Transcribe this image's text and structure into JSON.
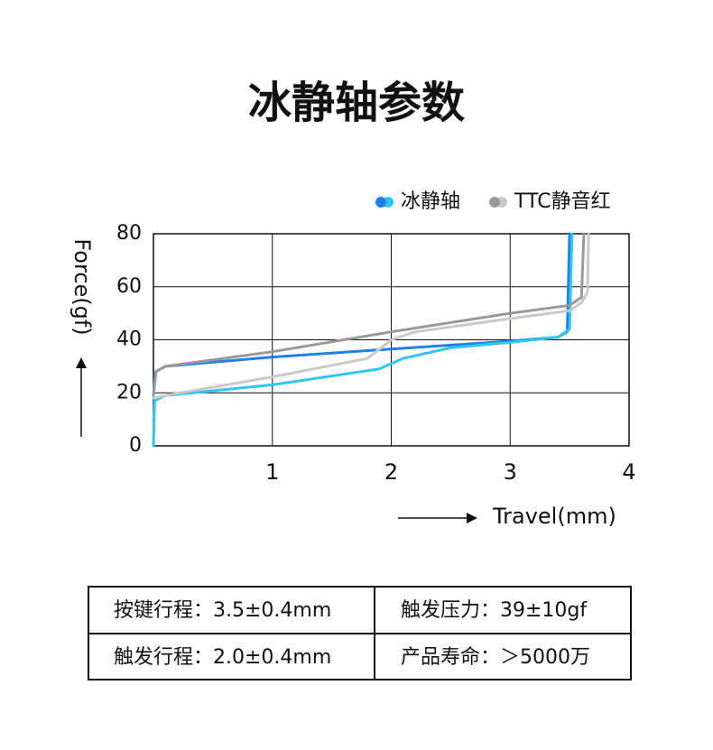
{
  "chart_data": {
    "type": "line",
    "title": "冰静轴参数",
    "y_label": "Force(gf)",
    "x_label": "Travel(mm)",
    "xlim": [
      0,
      4
    ],
    "xticks": [
      1,
      2,
      3,
      4
    ],
    "ylim": [
      0,
      80
    ],
    "yticks": [
      0,
      20,
      40,
      60,
      80
    ],
    "grid": true,
    "legend": "top-right",
    "series": [
      {
        "name": "冰静轴",
        "lines": [
          {
            "color": "#1f80e6",
            "x": [
              0,
              0.02,
              0.1,
              1,
              2,
              3,
              3.4,
              3.48,
              3.5
            ],
            "values": [
              19,
              28,
              30,
              33.5,
              36.5,
              39.5,
              41,
              43,
              80
            ]
          },
          {
            "color": "#30c6ef",
            "x": [
              0,
              0.01,
              0.1,
              1,
              1.9,
              2.1,
              2.5,
              3,
              3.4,
              3.5,
              3.52
            ],
            "values": [
              0,
              17,
              19,
              23,
              29,
              33,
              37,
              39,
              41,
              44,
              80
            ]
          }
        ]
      },
      {
        "name": "TTC静音红",
        "lines": [
          {
            "color": "#999999",
            "x": [
              0,
              0.02,
              0.1,
              1,
              2,
              3,
              3.5,
              3.6,
              3.62
            ],
            "values": [
              19,
              28,
              30,
              35.5,
              43,
              50,
              53,
              56,
              80
            ]
          },
          {
            "color": "#c9c9c9",
            "x": [
              0,
              0.1,
              1,
              1.8,
              2,
              2.2,
              3,
              3.5,
              3.6,
              3.65,
              3.66
            ],
            "values": [
              18,
              19,
              26,
              33,
              40,
              43,
              48,
              51,
              54,
              58,
              80
            ]
          }
        ]
      }
    ]
  },
  "table": {
    "rows": [
      [
        "按键行程：3.5±0.4mm",
        "触发压力：39±10gf"
      ],
      [
        "触发行程：2.0±0.4mm",
        "产品寿命：＞5000万"
      ]
    ]
  }
}
